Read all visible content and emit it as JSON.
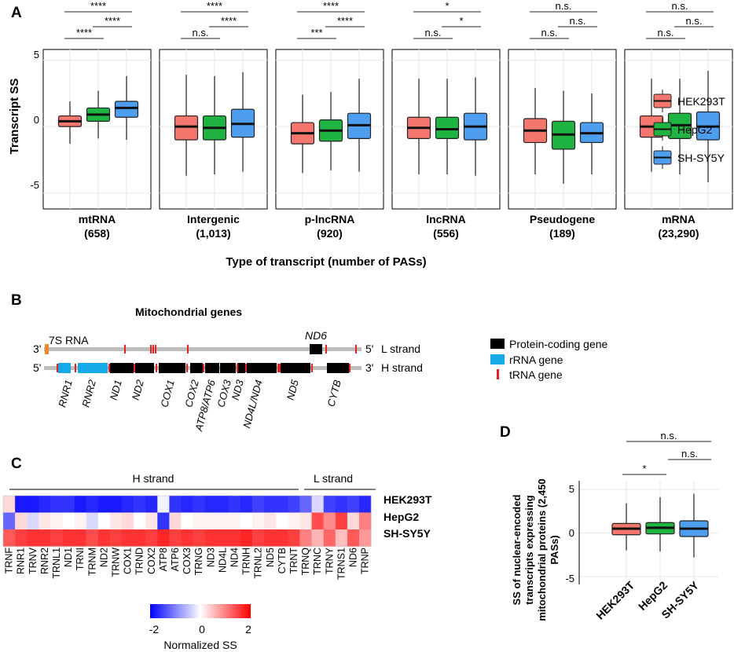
{
  "colors": {
    "hek": "#f4766d",
    "hepg2": "#1fb342",
    "shsy5y": "#4e9ef0",
    "panel_bg": "#ebebeb",
    "protein": "#000000",
    "rrna": "#16a9e8",
    "trna": "#e8201f",
    "strand": "#bcbcbc",
    "orange": "#f08a28"
  },
  "panelA": {
    "label": "A",
    "ylabel": "Transcript SS",
    "xlabel": "Type of transcript (number of PASs)",
    "yticks": [
      "5",
      "0",
      "-5"
    ],
    "legend": [
      "HEK293T",
      "HepG2",
      "SH-SY5Y"
    ]
  },
  "panelB": {
    "label": "B",
    "title": "Mitochondrial genes",
    "rna7s": "7S RNA",
    "nd6": "ND6",
    "l_strand": "L strand",
    "h_strand": "H strand",
    "three": "3'",
    "five": "5'",
    "legend": [
      "Protein-coding gene",
      "rRNA gene",
      "tRNA gene"
    ],
    "gene_labels": [
      "RNR1",
      "RNR2",
      "ND1",
      "ND2",
      "COX1",
      "COX2",
      "ATP8/ATP6",
      "COX3",
      "ND3",
      "ND4L/ND4",
      "ND5",
      "CYTB"
    ]
  },
  "panelC": {
    "label": "C",
    "h_strand": "H strand",
    "l_strand": "L strand",
    "rows": [
      "HEK293T",
      "HepG2",
      "SH-SY5Y"
    ],
    "columns": [
      "TRNF",
      "RNR1",
      "TRNV",
      "RNR2",
      "TRNL1",
      "ND1",
      "TRNI",
      "TRNM",
      "ND2",
      "TRNW",
      "COX1",
      "TRND",
      "COX2",
      "ATP8",
      "ATP6",
      "COX3",
      "TRNG",
      "ND3",
      "ND4L",
      "ND4",
      "TRNH",
      "TRNL2",
      "ND5",
      "CYTB",
      "TRNT",
      "TRNQ",
      "TRNC",
      "TRNY",
      "TRNS1",
      "ND6",
      "TRNP"
    ],
    "values": [
      [
        0.3,
        -1.8,
        -1.8,
        -1.7,
        -1.6,
        -1.6,
        -1.8,
        -1.7,
        -1.8,
        -1.8,
        -1.7,
        -1.6,
        -1.7,
        -0.1,
        -1.6,
        -1.7,
        -1.6,
        -1.7,
        -1.7,
        -1.6,
        -1.7,
        -1.5,
        -1.6,
        -1.6,
        -1.5,
        -1.2,
        -0.3,
        -1.5,
        -1.6,
        -1.5,
        -1.7
      ],
      [
        -1.2,
        0.3,
        -0.3,
        0.2,
        0.1,
        0.0,
        0.1,
        -0.3,
        0.0,
        0.2,
        0.3,
        0.0,
        0.2,
        -1.6,
        0.3,
        0.0,
        0.1,
        0.1,
        0.1,
        0.1,
        0.0,
        0.1,
        0.2,
        0.0,
        0.1,
        0.2,
        1.4,
        0.9,
        1.5,
        0.3,
        1.0
      ],
      [
        1.3,
        1.5,
        1.6,
        1.6,
        1.5,
        1.6,
        1.6,
        1.4,
        1.6,
        1.5,
        1.6,
        1.6,
        1.5,
        1.7,
        1.5,
        1.6,
        1.5,
        1.6,
        1.6,
        1.6,
        1.7,
        1.5,
        1.6,
        1.6,
        1.5,
        1.0,
        0.6,
        1.2,
        0.5,
        1.3,
        0.8
      ]
    ],
    "colorbar_ticks": [
      "-2",
      "0",
      "2"
    ],
    "colorbar_label": "Normalized SS"
  },
  "panelD": {
    "label": "D",
    "ylabel_lines": [
      "SS of nuclear-encoded",
      "transcripts expressing",
      "mitochondrial proteins (2,450",
      "PASs)"
    ],
    "yticks": [
      "5",
      "0",
      "-5"
    ],
    "categories": [
      "HEK293T",
      "HepG2",
      "SH-SY5Y"
    ],
    "sig": [
      "n.s.",
      "*",
      "n.s."
    ]
  },
  "chart_data": [
    {
      "type": "box",
      "title": "",
      "xlabel": "Type of transcript (number of PASs)",
      "ylabel": "Transcript SS",
      "ylim": [
        -6.2,
        5.8
      ],
      "yticks": [
        5,
        0,
        -5
      ],
      "series_names": [
        "HEK293T",
        "HepG2",
        "SH-SY5Y"
      ],
      "groups": [
        {
          "name": "mtRNA",
          "count": "(658)",
          "boxes": [
            [
              -1.3,
              0.0,
              0.4,
              0.8,
              1.9
            ],
            [
              -0.9,
              0.4,
              0.9,
              1.4,
              2.7
            ],
            [
              -1.0,
              0.7,
              1.4,
              1.9,
              3.8
            ]
          ],
          "sig": [
            {
              "a": 0,
              "b": 1,
              "label": "****"
            },
            {
              "a": 1,
              "b": 2,
              "label": "****"
            },
            {
              "a": 0,
              "b": 2,
              "label": "****"
            }
          ]
        },
        {
          "name": "Intergenic",
          "count": "(1,013)",
          "boxes": [
            [
              -3.7,
              -1.0,
              0.0,
              0.8,
              3.9
            ],
            [
              -3.6,
              -1.0,
              -0.1,
              0.8,
              3.8
            ],
            [
              -3.4,
              -0.8,
              0.2,
              1.3,
              4.1
            ]
          ],
          "sig": [
            {
              "a": 0,
              "b": 1,
              "label": "n.s."
            },
            {
              "a": 1,
              "b": 2,
              "label": "****"
            },
            {
              "a": 0,
              "b": 2,
              "label": "****"
            }
          ]
        },
        {
          "name": "p-lncRNA",
          "count": "(920)",
          "boxes": [
            [
              -3.5,
              -1.3,
              -0.5,
              0.3,
              2.4
            ],
            [
              -3.3,
              -1.1,
              -0.3,
              0.5,
              2.6
            ],
            [
              -3.4,
              -0.9,
              0.1,
              1.0,
              3.6
            ]
          ],
          "sig": [
            {
              "a": 0,
              "b": 1,
              "label": "***"
            },
            {
              "a": 1,
              "b": 2,
              "label": "****"
            },
            {
              "a": 0,
              "b": 2,
              "label": "****"
            }
          ]
        },
        {
          "name": "lncRNA",
          "count": "(556)",
          "boxes": [
            [
              -3.6,
              -0.9,
              -0.1,
              0.7,
              3.6
            ],
            [
              -3.6,
              -0.9,
              -0.2,
              0.7,
              3.6
            ],
            [
              -3.7,
              -1.0,
              0.0,
              1.0,
              3.7
            ]
          ],
          "sig": [
            {
              "a": 0,
              "b": 1,
              "label": "n.s."
            },
            {
              "a": 1,
              "b": 2,
              "label": "*"
            },
            {
              "a": 0,
              "b": 2,
              "label": "*"
            }
          ]
        },
        {
          "name": "Pseudogene",
          "count": "(189)",
          "boxes": [
            [
              -3.6,
              -1.2,
              -0.3,
              0.6,
              2.9
            ],
            [
              -4.3,
              -1.7,
              -0.6,
              0.4,
              2.7
            ],
            [
              -3.6,
              -1.2,
              -0.5,
              0.3,
              2.5
            ]
          ],
          "sig": [
            {
              "a": 0,
              "b": 1,
              "label": "n.s."
            },
            {
              "a": 1,
              "b": 2,
              "label": "n.s."
            },
            {
              "a": 0,
              "b": 2,
              "label": "n.s."
            }
          ]
        },
        {
          "name": "mRNA",
          "count": "(23,290)",
          "boxes": [
            [
              -3.4,
              -0.8,
              0.0,
              0.8,
              3.6
            ],
            [
              -3.6,
              -0.9,
              0.1,
              1.0,
              3.6
            ],
            [
              -4.2,
              -1.0,
              0.0,
              1.1,
              4.2
            ]
          ],
          "sig": [
            {
              "a": 0,
              "b": 1,
              "label": "n.s."
            },
            {
              "a": 1,
              "b": 2,
              "label": "n.s."
            },
            {
              "a": 0,
              "b": 2,
              "label": "n.s."
            }
          ]
        }
      ]
    },
    {
      "type": "heatmap",
      "title": "",
      "rows": [
        "HEK293T",
        "HepG2",
        "SH-SY5Y"
      ],
      "colorbar_label": "Normalized SS",
      "range": [
        -2,
        2
      ]
    },
    {
      "type": "box",
      "title": "",
      "ylabel": "SS of nuclear-encoded transcripts expressing mitochondrial proteins (2,450 PASs)",
      "ylim": [
        -6,
        6
      ],
      "yticks": [
        5,
        0,
        -5
      ],
      "categories": [
        "HEK293T",
        "HepG2",
        "SH-SY5Y"
      ],
      "boxes": [
        [
          -2.0,
          -0.2,
          0.5,
          1.1,
          3.4
        ],
        [
          -2.1,
          -0.1,
          0.6,
          1.2,
          4.1
        ],
        [
          -2.8,
          -0.4,
          0.5,
          1.4,
          4.5
        ]
      ],
      "sig": [
        {
          "a": 0,
          "b": 1,
          "label": "*"
        },
        {
          "a": 1,
          "b": 2,
          "label": "n.s."
        },
        {
          "a": 0,
          "b": 2,
          "label": "n.s."
        }
      ]
    }
  ]
}
